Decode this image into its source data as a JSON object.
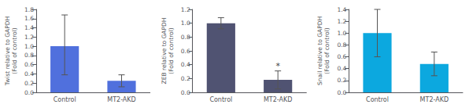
{
  "chart_data": [
    {
      "type": "bar",
      "ylabel": "Twist relative to GAPDH\n(Fold of control)",
      "categories": [
        "Control",
        "MT2-AKD"
      ],
      "values": [
        1.0,
        0.25
      ],
      "errors_up": [
        0.68,
        0.13
      ],
      "errors_down": [
        0.62,
        0.13
      ],
      "ylim": [
        0,
        1.8
      ],
      "yticks": [
        {
          "value": 0,
          "label": "0.0"
        },
        0.2,
        0.4,
        0.6,
        0.8,
        {
          "value": 1,
          "label": "1.0"
        },
        1.2,
        1.4,
        1.6,
        1.8
      ],
      "grid": false
    },
    {
      "type": "bar",
      "ylabel": "ZEB relative to GAPDH\n(Fold of control)",
      "categories": [
        "Control",
        "MT2-AKD"
      ],
      "values": [
        1.0,
        0.18
      ],
      "errors_up": [
        0.08,
        0.13
      ],
      "errors_down": [
        0.08,
        0.13
      ],
      "ylim": [
        0,
        1.2
      ],
      "yticks": [
        {
          "value": 0,
          "label": "0.0"
        },
        0.2,
        0.4,
        0.6,
        0.8,
        {
          "value": 1,
          "label": "1.0"
        },
        1.2
      ],
      "annotations": [
        {
          "text": "*",
          "category": "MT2-AKD"
        }
      ],
      "grid": false
    },
    {
      "type": "bar",
      "ylabel": "Snail relative to GAPDH\n(Fold of control)",
      "categories": [
        "Control",
        "MT2-AKD"
      ],
      "values": [
        1.0,
        0.48
      ],
      "errors_up": [
        0.4,
        0.2
      ],
      "errors_down": [
        0.4,
        0.2
      ],
      "ylim": [
        0,
        1.4
      ],
      "yticks": [
        {
          "value": 0,
          "label": "0.0"
        },
        0.2,
        0.4,
        0.6,
        0.8,
        {
          "value": 1,
          "label": "1.0"
        },
        1.2,
        1.4
      ],
      "grid": false
    }
  ]
}
